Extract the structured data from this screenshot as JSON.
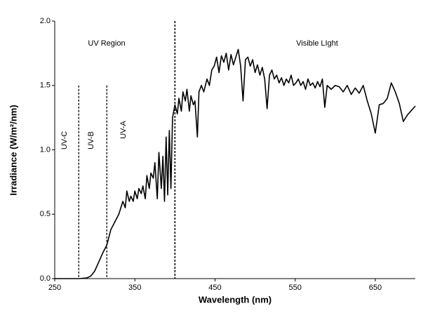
{
  "chart_data": {
    "type": "line",
    "xlabel": "Wavelength (nm)",
    "ylabel": "Irradiance (W/m²/nm)",
    "color": "#000000",
    "x": [
      250,
      260,
      270,
      280,
      290,
      295,
      300,
      305,
      310,
      315,
      320,
      325,
      330,
      335,
      338,
      340,
      343,
      345,
      348,
      350,
      353,
      355,
      358,
      360,
      363,
      365,
      368,
      370,
      373,
      375,
      378,
      380,
      383,
      385,
      387,
      389,
      391,
      393,
      395,
      397,
      400,
      403,
      405,
      408,
      410,
      413,
      415,
      418,
      420,
      423,
      425,
      428,
      430,
      433,
      436,
      440,
      443,
      446,
      449,
      452,
      455,
      458,
      461,
      464,
      467,
      470,
      473,
      476,
      479,
      482,
      485,
      488,
      491,
      494,
      497,
      500,
      503,
      506,
      509,
      512,
      515,
      518,
      521,
      524,
      527,
      530,
      533,
      536,
      539,
      542,
      545,
      548,
      551,
      554,
      557,
      560,
      563,
      566,
      569,
      572,
      575,
      578,
      581,
      584,
      587,
      590,
      595,
      600,
      605,
      610,
      615,
      620,
      625,
      630,
      635,
      640,
      645,
      650,
      655,
      660,
      665,
      670,
      675,
      680,
      685,
      690,
      700
    ],
    "values": [
      0,
      0,
      0,
      0,
      0.005,
      0.02,
      0.06,
      0.13,
      0.2,
      0.26,
      0.38,
      0.44,
      0.5,
      0.6,
      0.55,
      0.68,
      0.6,
      0.64,
      0.6,
      0.68,
      0.62,
      0.7,
      0.66,
      0.72,
      0.62,
      0.8,
      0.7,
      0.82,
      0.78,
      0.9,
      0.62,
      0.98,
      0.7,
      0.95,
      0.6,
      1.1,
      0.65,
      1.15,
      0.7,
      1.25,
      1.35,
      1.28,
      1.4,
      1.3,
      1.45,
      1.38,
      1.47,
      1.3,
      1.42,
      1.35,
      1.38,
      1.1,
      1.45,
      1.5,
      1.45,
      1.55,
      1.5,
      1.62,
      1.65,
      1.72,
      1.6,
      1.73,
      1.68,
      1.75,
      1.62,
      1.74,
      1.66,
      1.72,
      1.78,
      1.65,
      1.38,
      1.7,
      1.72,
      1.65,
      1.7,
      1.6,
      1.66,
      1.58,
      1.64,
      1.55,
      1.32,
      1.58,
      1.62,
      1.55,
      1.58,
      1.52,
      1.56,
      1.5,
      1.55,
      1.52,
      1.58,
      1.5,
      1.52,
      1.55,
      1.5,
      1.53,
      1.47,
      1.55,
      1.5,
      1.52,
      1.48,
      1.53,
      1.49,
      1.55,
      1.33,
      1.5,
      1.47,
      1.5,
      1.49,
      1.45,
      1.5,
      1.43,
      1.48,
      1.44,
      1.5,
      1.38,
      1.28,
      1.13,
      1.35,
      1.36,
      1.4,
      1.52,
      1.45,
      1.36,
      1.22,
      1.27,
      1.34
    ],
    "xlim": [
      250,
      700
    ],
    "ylim": [
      0,
      2
    ],
    "xticks": [
      250,
      350,
      450,
      550,
      650
    ],
    "yticks": [
      {
        "value": 0,
        "label": "0.0"
      },
      0.5,
      {
        "value": 1,
        "label": "1.0"
      },
      1.5,
      {
        "value": 2,
        "label": "2.0"
      }
    ],
    "vlines": [
      280,
      315,
      400
    ],
    "annotations": [
      "UV-C",
      "UV-B",
      "UV-A",
      "UV Region",
      "Visible LIght"
    ]
  }
}
